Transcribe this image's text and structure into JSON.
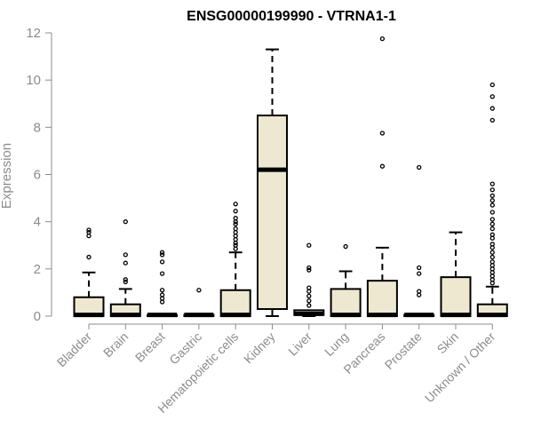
{
  "chart_data": {
    "type": "box",
    "title": "ENSG00000199990 - VTRNA1-1",
    "xlabel": "",
    "ylabel": "Expression",
    "ylim": [
      0,
      12
    ],
    "yticks": [
      0,
      2,
      4,
      6,
      8,
      10,
      12
    ],
    "box_fill": "#eee8d0",
    "categories": [
      "Bladder",
      "Brain",
      "Breast",
      "Gastric",
      "Hematopoietic cells",
      "Kidney",
      "Liver",
      "Lung",
      "Pancreas",
      "Prostate",
      "Skin",
      "Unknown / Other"
    ],
    "boxes": [
      {
        "min": 0,
        "q1": 0,
        "median": 0.05,
        "q3": 0.8,
        "max": 1.85,
        "outliers": [
          2.5,
          3.4,
          3.55,
          3.65
        ]
      },
      {
        "min": 0,
        "q1": 0,
        "median": 0.05,
        "q3": 0.5,
        "max": 1.15,
        "outliers": [
          1.45,
          1.55,
          2.25,
          2.6,
          4.0
        ]
      },
      {
        "min": 0,
        "q1": 0,
        "median": 0.05,
        "q3": 0.05,
        "max": 0.05,
        "outliers": [
          0.6,
          0.75,
          0.9,
          1.1,
          1.8,
          2.3,
          2.6,
          2.7
        ]
      },
      {
        "min": 0,
        "q1": 0,
        "median": 0.05,
        "q3": 0.05,
        "max": 0.05,
        "outliers": [
          1.1
        ]
      },
      {
        "min": 0,
        "q1": 0,
        "median": 0.05,
        "q3": 1.1,
        "max": 2.7,
        "outliers": [
          2.85,
          3.0,
          3.1,
          3.25,
          3.4,
          3.55,
          3.7,
          3.9,
          4.0,
          4.15,
          4.45,
          4.75
        ]
      },
      {
        "min": 0,
        "q1": 0.3,
        "median": 6.2,
        "q3": 8.5,
        "max": 11.3,
        "outliers": []
      },
      {
        "min": 0,
        "q1": 0.05,
        "median": 0.1,
        "q3": 0.25,
        "max": 0.25,
        "outliers": [
          0.45,
          0.65,
          0.85,
          1.05,
          1.2,
          1.95,
          2.05,
          3.0
        ]
      },
      {
        "min": 0,
        "q1": 0,
        "median": 0.05,
        "q3": 1.15,
        "max": 1.9,
        "outliers": [
          2.95
        ]
      },
      {
        "min": 0,
        "q1": 0,
        "median": 0.05,
        "q3": 1.5,
        "max": 2.9,
        "outliers": [
          6.35,
          7.75,
          11.75
        ]
      },
      {
        "min": 0,
        "q1": 0,
        "median": 0.05,
        "q3": 0.05,
        "max": 0.05,
        "outliers": [
          0.9,
          1.05,
          1.8,
          2.05,
          6.3
        ]
      },
      {
        "min": 0,
        "q1": 0,
        "median": 0.05,
        "q3": 1.65,
        "max": 3.55,
        "outliers": []
      },
      {
        "min": 0,
        "q1": 0,
        "median": 0.05,
        "q3": 0.5,
        "max": 1.25,
        "outliers": [
          1.4,
          1.55,
          1.7,
          1.85,
          2.0,
          2.15,
          2.3,
          2.5,
          2.7,
          2.9,
          3.05,
          3.3,
          3.45,
          3.7,
          3.9,
          4.1,
          4.4,
          4.7,
          4.9,
          5.1,
          5.35,
          5.6,
          8.3,
          8.8,
          9.3,
          9.8
        ]
      }
    ]
  }
}
